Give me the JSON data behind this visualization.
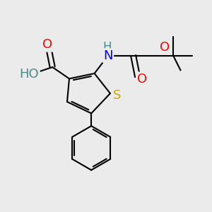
{
  "background_color": "#ebebeb",
  "bond_color": "#000000",
  "bond_width": 1.5,
  "atom_colors": {
    "O": "#ff0000",
    "N": "#0000ff",
    "S": "#ccaa00",
    "H_gray": "#4a8a8a",
    "C": "#000000"
  },
  "font_size_atoms": 13,
  "font_size_small": 11
}
